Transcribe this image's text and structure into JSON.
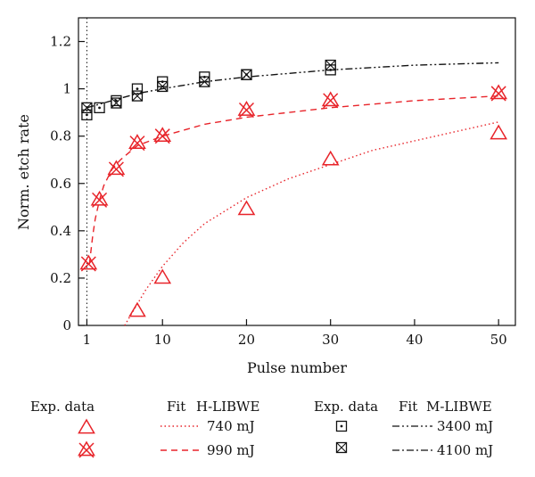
{
  "chart_data": {
    "type": "scatter",
    "xlabel": "Pulse number",
    "ylabel": "Norm. etch rate",
    "xlim": [
      0,
      52
    ],
    "ylim": [
      0,
      1.3
    ],
    "x_ticks": [
      1,
      10,
      20,
      30,
      40,
      50
    ],
    "y_ticks": [
      0,
      0.2,
      0.4,
      0.6,
      0.8,
      1,
      1.2
    ],
    "x_tick_labels": [
      "1",
      "10",
      "20",
      "30",
      "40",
      "50"
    ],
    "y_tick_labels": [
      "0",
      "0.2",
      "0.4",
      "0.6",
      "0.8",
      "1",
      "1.2"
    ],
    "vertical_reference_line_x": 1,
    "grid": false,
    "series": [
      {
        "id": "h740",
        "name": "740 mJ",
        "group": "H-LIBWE",
        "color": "#e8242a",
        "marker": "triangle",
        "points": [
          [
            7,
            0.06
          ],
          [
            10,
            0.2
          ],
          [
            20,
            0.49
          ],
          [
            30,
            0.7
          ],
          [
            50,
            0.81
          ]
        ],
        "fit_style": "dotted",
        "fit": [
          [
            5.5,
            0.0
          ],
          [
            7,
            0.09
          ],
          [
            8,
            0.15
          ],
          [
            10,
            0.25
          ],
          [
            12.5,
            0.35
          ],
          [
            15,
            0.43
          ],
          [
            20,
            0.54
          ],
          [
            25,
            0.62
          ],
          [
            30,
            0.68
          ],
          [
            35,
            0.74
          ],
          [
            40,
            0.78
          ],
          [
            45,
            0.82
          ],
          [
            50,
            0.86
          ]
        ]
      },
      {
        "id": "h990",
        "name": "990 mJ",
        "group": "H-LIBWE",
        "color": "#e8242a",
        "marker": "triangle-x",
        "points": [
          [
            1.2,
            0.26
          ],
          [
            2.5,
            0.53
          ],
          [
            4.5,
            0.66
          ],
          [
            7,
            0.77
          ],
          [
            10,
            0.8
          ],
          [
            20,
            0.91
          ],
          [
            30,
            0.95
          ],
          [
            50,
            0.98
          ]
        ],
        "fit_style": "dashed",
        "fit": [
          [
            1.3,
            0.26
          ],
          [
            1.7,
            0.38
          ],
          [
            2,
            0.45
          ],
          [
            2.5,
            0.53
          ],
          [
            3,
            0.59
          ],
          [
            4,
            0.66
          ],
          [
            5,
            0.7
          ],
          [
            7,
            0.76
          ],
          [
            10,
            0.8
          ],
          [
            15,
            0.85
          ],
          [
            20,
            0.88
          ],
          [
            30,
            0.92
          ],
          [
            40,
            0.95
          ],
          [
            50,
            0.97
          ]
        ]
      },
      {
        "id": "m3400",
        "name": "3400 mJ",
        "group": "M-LIBWE",
        "color": "#111111",
        "marker": "square-dot",
        "points": [
          [
            1,
            0.89
          ],
          [
            2.5,
            0.92
          ],
          [
            4.5,
            0.95
          ],
          [
            7,
            1.0
          ],
          [
            10,
            1.03
          ],
          [
            15,
            1.05
          ],
          [
            20,
            1.06
          ],
          [
            30,
            1.08
          ]
        ],
        "fit_style": "dash-dot-dot",
        "fit": [
          [
            1,
            0.92
          ],
          [
            3,
            0.94
          ],
          [
            5,
            0.96
          ],
          [
            7,
            0.98
          ],
          [
            10,
            1.0
          ],
          [
            15,
            1.03
          ],
          [
            20,
            1.05
          ],
          [
            30,
            1.08
          ],
          [
            40,
            1.1
          ],
          [
            50,
            1.11
          ]
        ]
      },
      {
        "id": "m4100",
        "name": "4100 mJ",
        "group": "M-LIBWE",
        "color": "#111111",
        "marker": "square-x",
        "points": [
          [
            1,
            0.92
          ],
          [
            4.5,
            0.94
          ],
          [
            7,
            0.97
          ],
          [
            10,
            1.01
          ],
          [
            15,
            1.03
          ],
          [
            20,
            1.06
          ],
          [
            30,
            1.1
          ]
        ],
        "fit_style": "dash-dot",
        "fit": []
      }
    ]
  },
  "legend": {
    "h_header_exp": "Exp. data",
    "h_header_fit": "Fit",
    "h_header_group": "H-LIBWE",
    "m_header_exp": "Exp. data",
    "m_header_fit": "Fit",
    "m_header_group": "M-LIBWE",
    "h740_label": "740 mJ",
    "h990_label": "990 mJ",
    "m3400_label": "3400 mJ",
    "m4100_label": "4100 mJ"
  }
}
